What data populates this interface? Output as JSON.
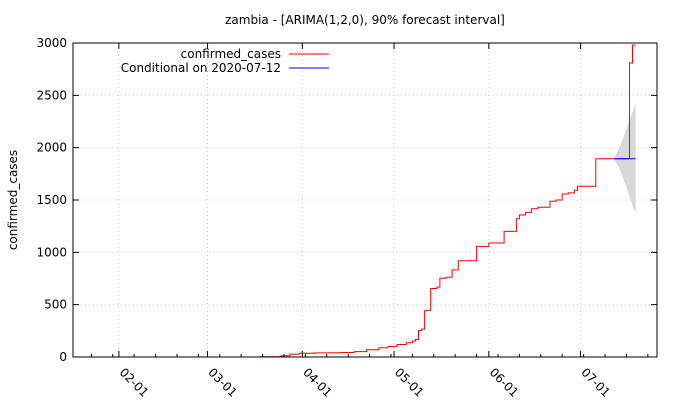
{
  "chart_data": {
    "type": "line",
    "title": "zambia -  [ARIMA(1,2,0), 90% forecast interval]",
    "ylabel": "confirmed_cases",
    "xlabel": "",
    "ylim": [
      0,
      3000
    ],
    "xlim": [
      "2020-01-17",
      "2020-07-26"
    ],
    "y_ticks": [
      0,
      500,
      1000,
      1500,
      2000,
      2500,
      3000
    ],
    "y_tick_labels": [
      "0",
      "500",
      "1000",
      "1500",
      "2000",
      "2500",
      "3000"
    ],
    "x_ticks": [
      "2020-02-01",
      "2020-03-01",
      "2020-04-01",
      "2020-05-01",
      "2020-06-01",
      "2020-07-01"
    ],
    "x_tick_labels": [
      "02-01",
      "03-01",
      "04-01",
      "05-01",
      "06-01",
      "07-01"
    ],
    "grid": true,
    "legend_position": "top-left",
    "series": [
      {
        "name": "confirmed_cases",
        "color": "#ff0000",
        "points": [
          [
            "2020-03-18",
            2
          ],
          [
            "2020-03-20",
            3
          ],
          [
            "2020-03-25",
            12
          ],
          [
            "2020-03-28",
            28
          ],
          [
            "2020-03-31",
            35
          ],
          [
            "2020-04-05",
            39
          ],
          [
            "2020-04-10",
            40
          ],
          [
            "2020-04-14",
            43
          ],
          [
            "2020-04-18",
            52
          ],
          [
            "2020-04-22",
            70
          ],
          [
            "2020-04-26",
            89
          ],
          [
            "2020-04-29",
            100
          ],
          [
            "2020-05-02",
            119
          ],
          [
            "2020-05-05",
            137
          ],
          [
            "2020-05-07",
            153
          ],
          [
            "2020-05-08",
            167
          ],
          [
            "2020-05-09",
            252
          ],
          [
            "2020-05-10",
            267
          ],
          [
            "2020-05-11",
            441
          ],
          [
            "2020-05-12",
            446
          ],
          [
            "2020-05-13",
            654
          ],
          [
            "2020-05-14",
            654
          ],
          [
            "2020-05-15",
            668
          ],
          [
            "2020-05-16",
            753
          ],
          [
            "2020-05-18",
            761
          ],
          [
            "2020-05-20",
            832
          ],
          [
            "2020-05-22",
            920
          ],
          [
            "2020-05-27",
            920
          ],
          [
            "2020-05-28",
            1057
          ],
          [
            "2020-05-31",
            1057
          ],
          [
            "2020-06-01",
            1089
          ],
          [
            "2020-06-05",
            1089
          ],
          [
            "2020-06-06",
            1200
          ],
          [
            "2020-06-09",
            1200
          ],
          [
            "2020-06-10",
            1321
          ],
          [
            "2020-06-11",
            1357
          ],
          [
            "2020-06-13",
            1382
          ],
          [
            "2020-06-15",
            1416
          ],
          [
            "2020-06-17",
            1430
          ],
          [
            "2020-06-20",
            1430
          ],
          [
            "2020-06-21",
            1489
          ],
          [
            "2020-06-23",
            1500
          ],
          [
            "2020-06-25",
            1557
          ],
          [
            "2020-06-27",
            1568
          ],
          [
            "2020-06-29",
            1594
          ],
          [
            "2020-06-30",
            1632
          ],
          [
            "2020-07-05",
            1632
          ],
          [
            "2020-07-06",
            1895
          ],
          [
            "2020-07-12",
            1895
          ],
          [
            "2020-07-16",
            1895
          ],
          [
            "2020-07-17",
            2810
          ],
          [
            "2020-07-18",
            2980
          ],
          [
            "2020-07-19",
            2980
          ]
        ]
      },
      {
        "name": "Conditional on 2020-07-12",
        "color": "#0000ff",
        "points": [
          [
            "2020-07-12",
            1895
          ],
          [
            "2020-07-19",
            1895
          ]
        ]
      }
    ],
    "forecast_interval": {
      "label": "90% forecast interval",
      "color": "#d8d8d8",
      "points": [
        [
          "2020-07-12",
          1885,
          1905
        ],
        [
          "2020-07-13",
          1840,
          1960
        ],
        [
          "2020-07-14",
          1780,
          2020
        ],
        [
          "2020-07-15",
          1700,
          2100
        ],
        [
          "2020-07-16",
          1620,
          2180
        ],
        [
          "2020-07-17",
          1530,
          2260
        ],
        [
          "2020-07-18",
          1450,
          2340
        ],
        [
          "2020-07-19",
          1370,
          2420
        ]
      ]
    }
  }
}
